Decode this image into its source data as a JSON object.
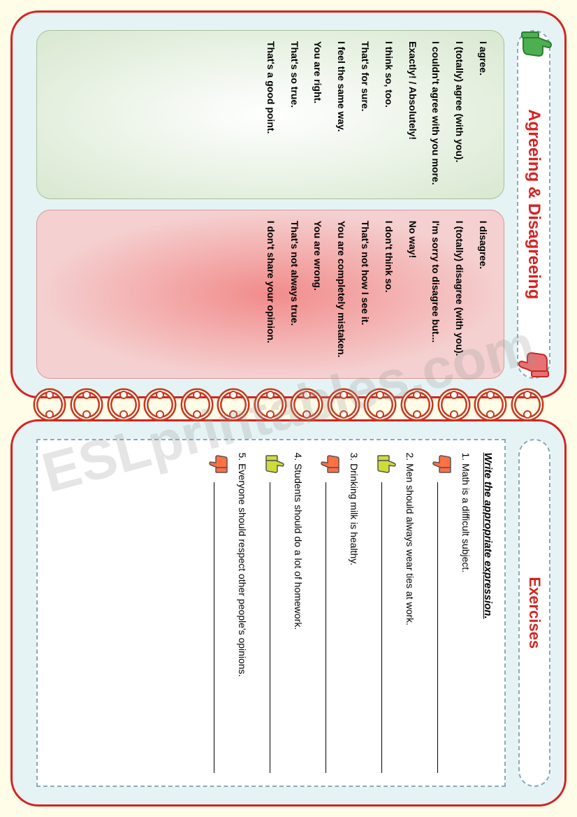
{
  "watermark": "ESLprintables.com",
  "left": {
    "title": "Agreeing & Disagreeing",
    "agree_phrases": [
      "I agree.",
      "I (totally) agree (with you).",
      "I couldn't agree with you more.",
      "Exactly! / Absolutely!",
      "I think so, too.",
      "That's for sure.",
      "I feel the same way.",
      "You are right.",
      "That's so true.",
      "That's a good point."
    ],
    "disagree_phrases": [
      "I disagree.",
      "I (totally) disagree (with you).",
      "I'm sorry to disagree but...",
      "No way!",
      "I don't think so.",
      "That's not how I see it.",
      "You are completely mistaken.",
      "You are wrong.",
      "That's not always true.",
      "I don't share your opinion."
    ]
  },
  "right": {
    "title": "Exercises",
    "instruction": "Write the appropriate expression.",
    "questions": [
      {
        "n": "1.",
        "text": "Math is a difficult subject.",
        "thumb": "down"
      },
      {
        "n": "2.",
        "text": "Men should always wear ties at work.",
        "thumb": "up"
      },
      {
        "n": "3.",
        "text": "Drinking milk is healthy.",
        "thumb": "down"
      },
      {
        "n": "4.",
        "text": "Students should do a lot of homework.",
        "thumb": "up"
      },
      {
        "n": "5.",
        "text": "Everyone should respect other people's opinions.",
        "thumb": "down"
      }
    ]
  },
  "colors": {
    "thumb_up_fill": "#4caf50",
    "thumb_up_stroke": "#2e7d32",
    "thumb_down_fill": "#e57373",
    "thumb_down_stroke": "#c62828",
    "hand_up_fill": "#cddc39",
    "hand_down_fill": "#ff7043",
    "hand_stroke": "#555555",
    "ring_fill": "#c83a1a",
    "ring_hole": "#ffffff"
  }
}
